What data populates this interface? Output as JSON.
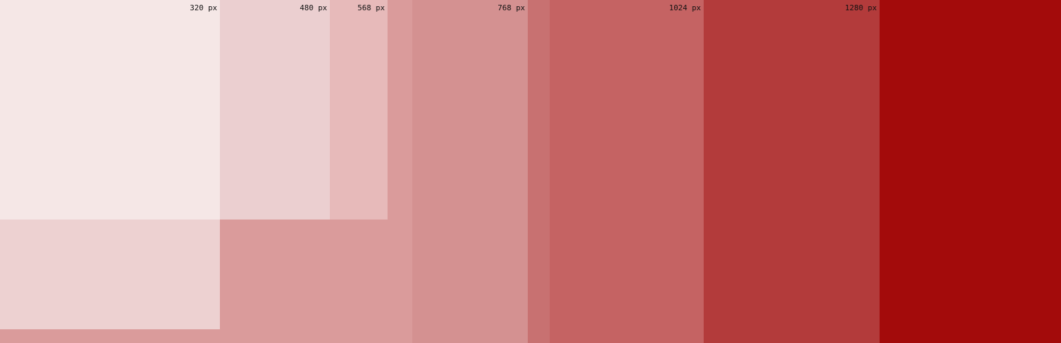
{
  "colors": {
    "page_bottom": "#e2b3b3",
    "band_1280": "#a30b0b",
    "band_1024": "#b33b3b",
    "band_800": "#c56363",
    "band_768": "#c87171",
    "band_600": "#d49191",
    "band_568": "#da9b9b",
    "band_320_tall": "#edd1d1",
    "band_480": "#e7baba",
    "band_320": "#ebcfd0",
    "band_0": "#f5e7e6"
  },
  "labels": {
    "b1280": "1280 px",
    "b1024": "1024 px",
    "b768": "768 px",
    "b568": "568 px",
    "b480": "480 px",
    "b320": "320 px"
  }
}
